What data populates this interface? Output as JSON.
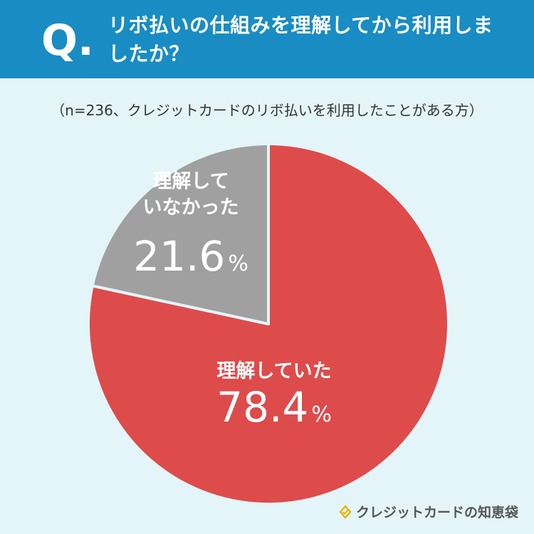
{
  "header": {
    "q_mark": "Q.",
    "title": "リボ払いの仕組みを理解してから利用しましたか？"
  },
  "note": "（n=236、クレジットカードのリボ払いを利用したことがある方）",
  "brand": {
    "name": "クレジットカードの知恵袋",
    "icon": "lightbulb-icon"
  },
  "colors": {
    "header": "#1a8cc4",
    "background": "#e3f5f8",
    "understood": "#de4b4b",
    "not_understood": "#a0a0a0"
  },
  "chart_data": {
    "type": "pie",
    "title": "",
    "start_angle": "12 o'clock, clockwise",
    "slices": [
      {
        "label_lines": [
          "理解していた"
        ],
        "value": 78.4,
        "value_text": "78.4",
        "unit": "%",
        "color": "#de4b4b"
      },
      {
        "label_lines": [
          "理解して",
          "いなかった"
        ],
        "value": 21.6,
        "value_text": "21.6",
        "unit": "%",
        "color": "#a0a0a0"
      }
    ]
  }
}
